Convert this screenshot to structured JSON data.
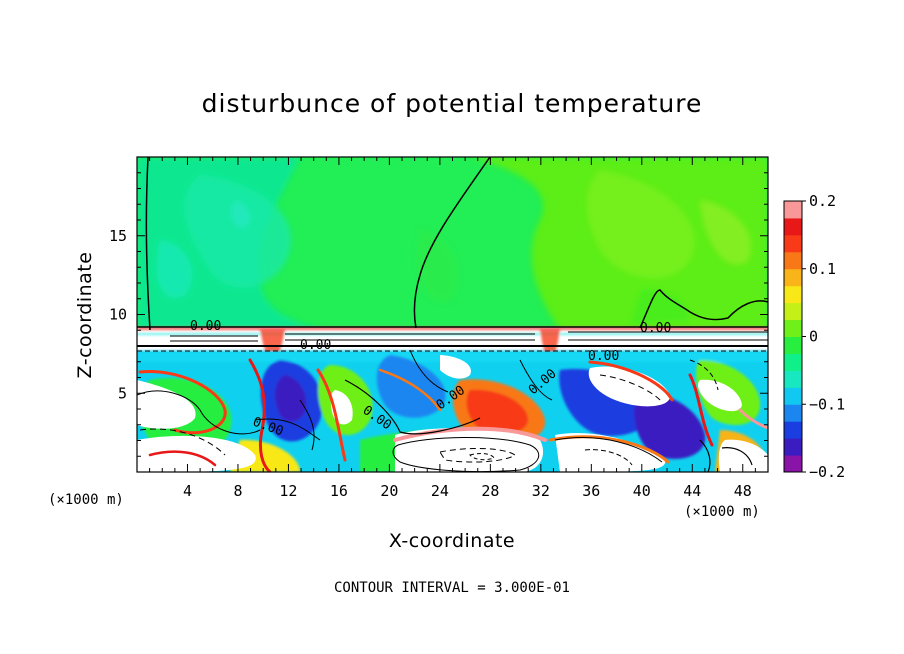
{
  "chart_data": {
    "type": "heatmap",
    "title": "disturbunce of potential temperature",
    "xlabel": "X-coordinate",
    "ylabel": "Z-coordinate",
    "x_unit": "(×1000 m)",
    "y_unit": "(×1000 m)",
    "xlim": [
      0,
      50
    ],
    "ylim": [
      0,
      20
    ],
    "xticks": [
      4,
      8,
      12,
      16,
      20,
      24,
      28,
      32,
      36,
      40,
      44,
      48
    ],
    "xtick_labels": [
      "4",
      "8",
      "12",
      "16",
      "20",
      "24",
      "28",
      "32",
      "36",
      "40",
      "44",
      "48"
    ],
    "yticks": [
      5,
      10,
      15
    ],
    "ytick_labels": [
      "5",
      "10",
      "15"
    ],
    "colorbar": {
      "min": -0.2,
      "max": 0.2,
      "ticks": [
        0.2,
        0.1,
        0,
        -0.1,
        -0.2
      ],
      "tick_labels": [
        "0.2",
        "0.1",
        "0",
        "−0.1",
        "−0.2"
      ],
      "colors": [
        "#8a14a8",
        "#3a1cc0",
        "#1a3ee0",
        "#1c86f0",
        "#10c8f0",
        "#18e8c0",
        "#10f088",
        "#28ee40",
        "#6ef018",
        "#c4f018",
        "#f8e818",
        "#f8b418",
        "#f87818",
        "#f83a18",
        "#e81818",
        "#f89898"
      ]
    },
    "contour_labels": [
      "0.00",
      "0.00",
      "0.00",
      "0.00",
      "0.00",
      "0.00",
      "0.00",
      "0.00"
    ],
    "note": "CONTOUR INTERVAL = 3.000E-01"
  }
}
